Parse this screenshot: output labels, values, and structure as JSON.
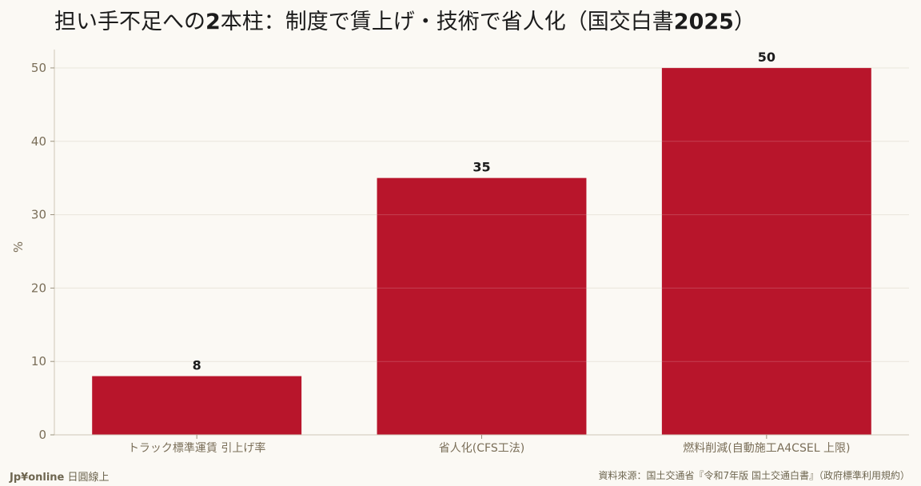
{
  "title_parts": {
    "p1": "担い手不足への",
    "p2": "2",
    "p3": "本柱：制度で賃上げ・技術で省人化（国交白書",
    "p4": "2025",
    "p5": "）"
  },
  "footer": {
    "brand": "Jp¥online",
    "brand_suffix": "日圓線上",
    "source": "資料來源：国土交通省『令和7年版 国土交通白書』（政府標準利用規約）"
  },
  "colors": {
    "bar": "#b8152b",
    "background": "#fbf9f4",
    "grid": "#e6e1d6",
    "axis_text": "#7a6e58"
  },
  "chart_data": {
    "type": "bar",
    "categories": [
      "トラック標準運賃 引上げ率",
      "省人化(CFS工法)",
      "燃料削減(自動施工A4CSEL 上限)"
    ],
    "values": [
      8,
      35,
      50
    ],
    "data_labels": [
      "8",
      "35",
      "50"
    ],
    "ylabel": "%",
    "ylim": [
      0,
      52.5
    ],
    "yticks": [
      0,
      10,
      20,
      30,
      40,
      50
    ],
    "grid": true,
    "legend": "none"
  }
}
